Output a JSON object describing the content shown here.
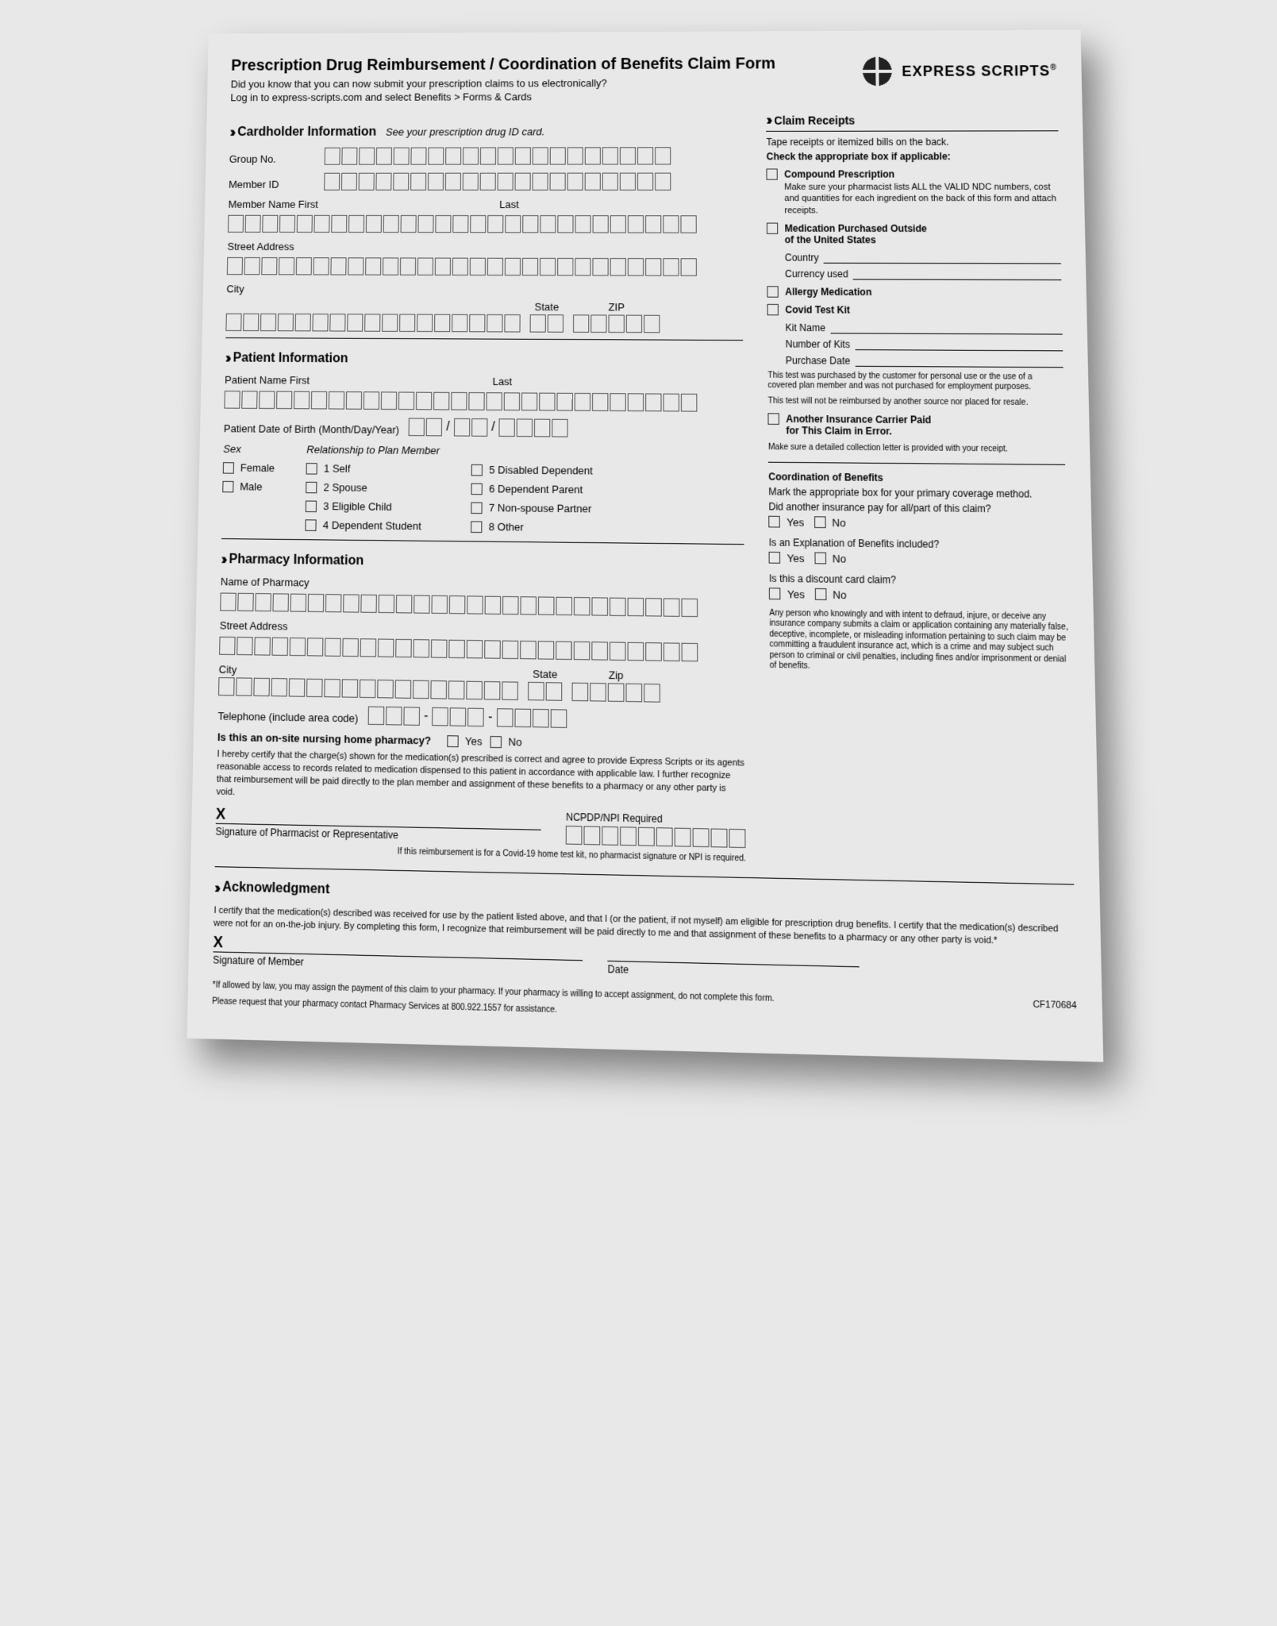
{
  "header": {
    "title": "Prescription Drug Reimbursement / Coordination of Benefits Claim Form",
    "line1": "Did you know that you can now submit your prescription claims to us electronically?",
    "line2": "Log in to express-scripts.com and select Benefits > Forms & Cards",
    "brand": "EXPRESS SCRIPTS"
  },
  "cardholder": {
    "title": "Cardholder Information",
    "hint": "See your prescription drug ID card.",
    "group_no": "Group No.",
    "member_id": "Member ID",
    "name_first": "Member Name First",
    "name_last": "Last",
    "street": "Street Address",
    "city": "City",
    "state": "State",
    "zip": "ZIP"
  },
  "patient": {
    "title": "Patient Information",
    "name_first": "Patient Name First",
    "name_last": "Last",
    "dob": "Patient Date of Birth (Month/Day/Year)",
    "sex": "Sex",
    "female": "Female",
    "male": "Male",
    "rel": "Relationship to Plan Member",
    "r1": "1 Self",
    "r2": "2 Spouse",
    "r3": "3 Eligible Child",
    "r4": "4 Dependent Student",
    "r5": "5 Disabled Dependent",
    "r6": "6 Dependent Parent",
    "r7": "7 Non-spouse Partner",
    "r8": "8 Other"
  },
  "pharmacy": {
    "title": "Pharmacy Information",
    "name": "Name of Pharmacy",
    "street": "Street Address",
    "city": "City",
    "state": "State",
    "zip": "Zip",
    "tel": "Telephone (include area code)",
    "onsite_q": "Is this an on-site nursing home pharmacy?",
    "yes": "Yes",
    "no": "No",
    "cert": "I hereby certify that the charge(s) shown for the medication(s) prescribed is correct and agree to provide Express Scripts or its agents reasonable access to records related to medication dispensed to this patient in accordance with applicable law. I further recognize that reimbursement will be paid directly to the plan member and assignment of these benefits to a pharmacy or any other party is void.",
    "ncpdp": "NCPDP/NPI Required",
    "sig": "Signature of Pharmacist or Representative",
    "covid_note": "If this reimbursement is for a Covid-19 home test kit, no pharmacist signature or NPI is required."
  },
  "ack": {
    "title": "Acknowledgment",
    "para": "I certify that the medication(s) described was received for use by the patient listed above, and that I (or the patient, if not myself) am eligible for prescription drug benefits. I certify that the medication(s) described were not for an on-the-job injury. By completing this form, I recognize that reimbursement will be paid directly to me and that assignment of these benefits to a pharmacy or any other party is void.*",
    "sig": "Signature of Member",
    "date": "Date",
    "foot1": "*If allowed by law, you may assign the payment of this claim to your pharmacy. If your pharmacy is willing to accept assignment, do not complete this form.",
    "foot2": "Please request that your pharmacy contact Pharmacy Services at 800.922.1557 for assistance.",
    "code": "CF170684"
  },
  "receipts": {
    "title": "Claim Receipts",
    "line1": "Tape receipts or itemized bills on the back.",
    "line2": "Check the appropriate box if applicable:",
    "compound_h": "Compound Prescription",
    "compound_d": "Make sure your pharmacist lists ALL the VALID NDC numbers, cost and quantities for each ingredient on the back of this form and attach receipts.",
    "outside_h1": "Medication Purchased Outside",
    "outside_h2": "of the United States",
    "country": "Country",
    "currency": "Currency used",
    "allergy": "Allergy Medication",
    "covid": "Covid Test Kit",
    "kit_name": "Kit Name",
    "kits": "Number of Kits",
    "purch": "Purchase Date",
    "covid_small1": "This test was purchased by the customer for personal use or the use of a covered plan member and was not purchased for employment purposes.",
    "covid_small2": "This test will not be reimbursed by another source nor placed for resale.",
    "another_h1": "Another Insurance Carrier Paid",
    "another_h2": "for This Claim in Error.",
    "another_d": "Make sure a detailed collection letter is provided with your receipt."
  },
  "cob": {
    "title": "Coordination of Benefits",
    "line1": "Mark the appropriate box for your primary coverage method.",
    "q1": "Did another insurance pay for all/part of this claim?",
    "q2": "Is an Explanation of Benefits included?",
    "q3": "Is this a discount card claim?",
    "yes": "Yes",
    "no": "No",
    "fraud": "Any person who knowingly and with intent to defraud, injure, or deceive any insurance company submits a claim or application containing any materially false, deceptive, incomplete, or misleading information pertaining to such claim may be committing a fraudulent insurance act, which is a crime and may subject such person to criminal or civil penalties, including fines and/or imprisonment or denial of benefits."
  }
}
